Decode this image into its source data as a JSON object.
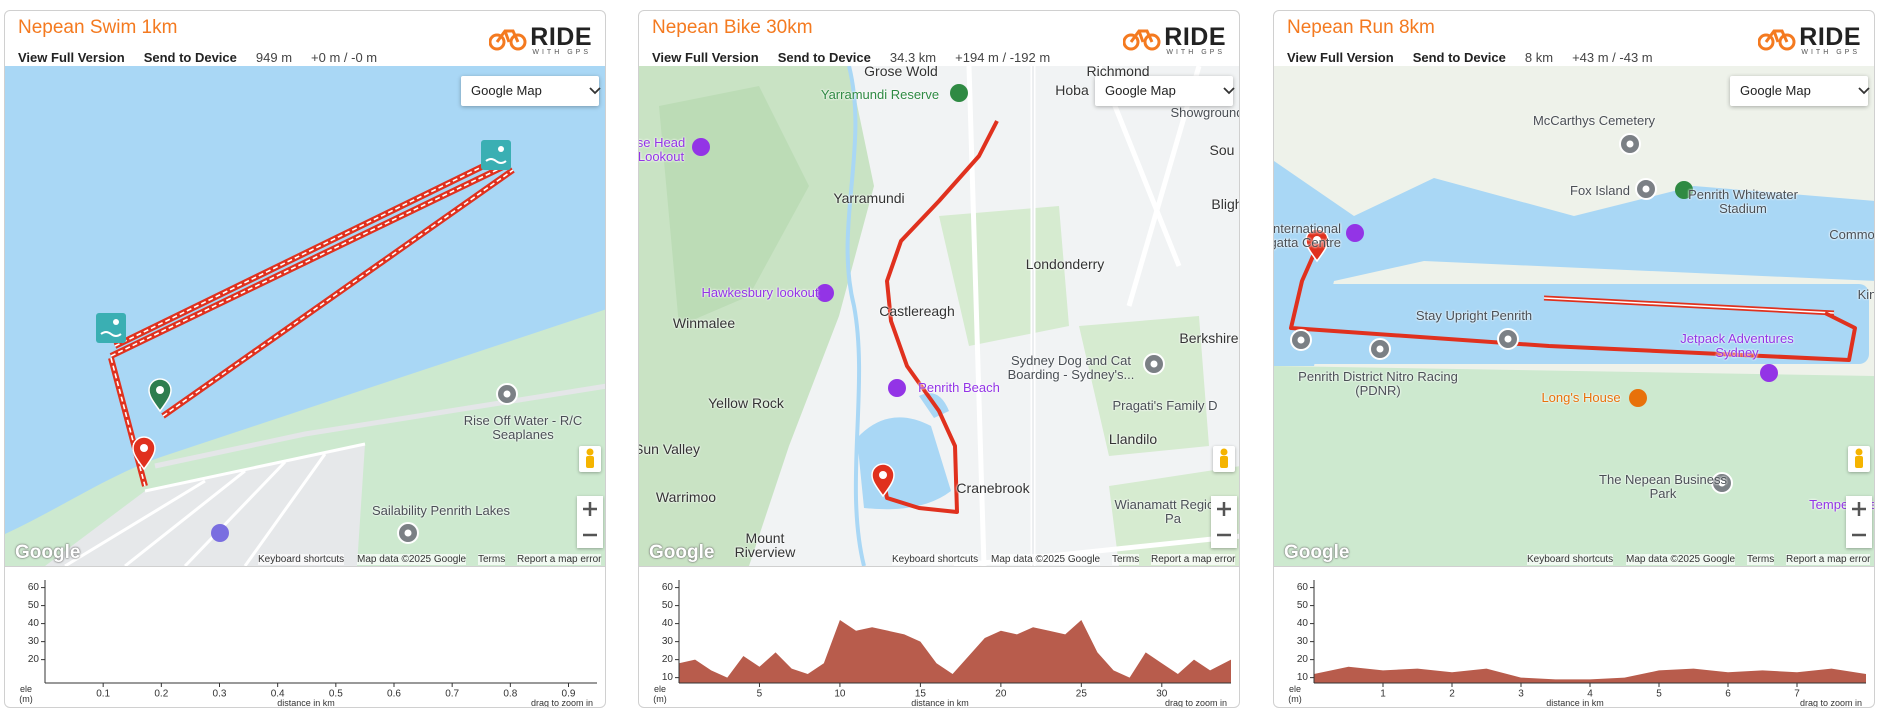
{
  "panels": [
    {
      "title": "Nepean Swim 1km",
      "links": [
        "View Full Version",
        "Send to Device"
      ],
      "distance": "949 m",
      "elevation": "+0 m / -0 m",
      "logo": {
        "name": "RIDE",
        "tagline": "WITH GPS"
      },
      "map": {
        "control": "Google Map",
        "google": "Google",
        "labels": [
          "Rise Off Water - R/C Seaplanes",
          "Sailability Penrith Lakes"
        ],
        "footer": [
          "Keyboard shortcuts",
          "Map data ©2025 Google",
          "Terms",
          "Report a map error"
        ]
      },
      "chart_data": {
        "type": "area",
        "ylabel": "ele (m)",
        "xlabel": "distance in km",
        "hint": "drag to zoom in",
        "xlim": [
          0,
          0.949
        ],
        "ylim": [
          7,
          62
        ],
        "xticks": [
          0.1,
          0.2,
          0.3,
          0.4,
          0.5,
          0.6,
          0.7,
          0.8,
          0.9
        ],
        "yticks": [
          20,
          30,
          40,
          50,
          60
        ],
        "color": "#b85c4c"
      }
    },
    {
      "title": "Nepean Bike 30km",
      "links": [
        "View Full Version",
        "Send to Device"
      ],
      "distance": "34.3 km",
      "elevation": "+194 m / -192 m",
      "logo": {
        "name": "RIDE",
        "tagline": "WITH GPS"
      },
      "map": {
        "control": "Google Map",
        "google": "Google",
        "labels": [
          "Grose Wold",
          "Richmond",
          "Yarramundi Reserve",
          "Hoba",
          "Showground",
          "Sou",
          "se Head Lookout",
          "Yarramundi",
          "Bligh",
          "Londonderry",
          "Hawkesbury lookout",
          "Castlereagh",
          "Winmalee",
          "Berkshire",
          "Sydney Dog and Cat Boarding - Sydney's...",
          "Penrith Beach",
          "Yellow Rock",
          "Pragati's Family D",
          "Llandilo",
          "Sun Valley",
          "Cranebrook",
          "Warrimoo",
          "Wianamatt Regional Pa",
          "Mount Riverview"
        ],
        "footer": [
          "Keyboard shortcuts",
          "Map data ©2025 Google",
          "Terms",
          "Report a map error"
        ]
      },
      "chart_data": {
        "type": "area",
        "ylabel": "ele (m)",
        "xlabel": "distance in km",
        "hint": "drag to zoom in",
        "xlim": [
          0,
          34.3
        ],
        "ylim": [
          7,
          62
        ],
        "xticks": [
          5,
          10,
          15,
          20,
          25,
          30
        ],
        "yticks": [
          10,
          20,
          30,
          40,
          50,
          60
        ],
        "color": "#b85c4c",
        "x": [
          0,
          1,
          2,
          3,
          4,
          5,
          6,
          7,
          8,
          9,
          9.5,
          10,
          11,
          12,
          13,
          14,
          15,
          16,
          17,
          18,
          19,
          20,
          21,
          22,
          23,
          24,
          25,
          26,
          27,
          28,
          29,
          30,
          31,
          32,
          33,
          34.3
        ],
        "values": [
          18,
          20,
          14,
          10,
          22,
          16,
          24,
          15,
          12,
          18,
          30,
          42,
          36,
          38,
          36,
          34,
          30,
          18,
          12,
          22,
          32,
          36,
          34,
          38,
          36,
          34,
          42,
          24,
          14,
          10,
          24,
          18,
          12,
          20,
          14,
          20
        ]
      }
    },
    {
      "title": "Nepean Run 8km",
      "links": [
        "View Full Version",
        "Send to Device"
      ],
      "distance": "8 km",
      "elevation": "+43 m / -43 m",
      "logo": {
        "name": "RIDE",
        "tagline": "WITH GPS"
      },
      "map": {
        "control": "Google Map",
        "google": "Google",
        "labels": [
          "McCarthys Cemetery",
          "Fox Island",
          "Penrith Whitewater Stadium",
          "Commo",
          "International Regatta Centre",
          "Kin",
          "Stay Upright Penrith",
          "Jetpack Adventures Sydney",
          "Penrith District Nitro Racing (PDNR)",
          "Long's House",
          "The Nepean Business Park",
          "Tempe Tyre"
        ],
        "footer": [
          "Keyboard shortcuts",
          "Map data ©2025 Google",
          "Terms",
          "Report a map error"
        ]
      },
      "chart_data": {
        "type": "area",
        "ylabel": "ele (m)",
        "xlabel": "distance in km",
        "hint": "drag to zoom in",
        "xlim": [
          0,
          8
        ],
        "ylim": [
          7,
          62
        ],
        "xticks": [
          1,
          2,
          3,
          4,
          5,
          6,
          7
        ],
        "yticks": [
          10,
          20,
          30,
          40,
          50,
          60
        ],
        "color": "#b85c4c",
        "x": [
          0,
          0.5,
          1,
          1.5,
          2,
          2.5,
          3,
          3.5,
          4,
          4.5,
          5,
          5.5,
          6,
          6.5,
          7,
          7.5,
          8
        ],
        "values": [
          12,
          16,
          14,
          15,
          13,
          15,
          10,
          9,
          9,
          10,
          14,
          15,
          13,
          14,
          13,
          15,
          12
        ]
      }
    }
  ]
}
